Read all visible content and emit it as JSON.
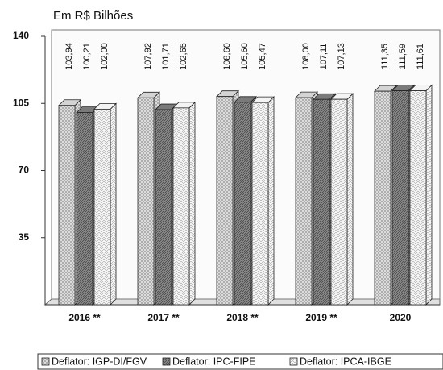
{
  "chart_data": {
    "type": "bar3d",
    "y_axis_label": "Em R$ Bilhões",
    "categories": [
      "2016 **",
      "2017 **",
      "2018 **",
      "2019 **",
      "2020"
    ],
    "series": [
      {
        "name": "Deflator: IGP-DI/FGV",
        "color": "#d4d4d4",
        "values": [
          103.94,
          107.92,
          108.6,
          108.0,
          111.35
        ],
        "value_labels": [
          "103,94",
          "107,92",
          "108,60",
          "108,00",
          "111,35"
        ]
      },
      {
        "name": "Deflator: IPC-FIPE",
        "color": "#7a7a7a",
        "values": [
          100.21,
          101.71,
          105.6,
          107.11,
          111.59
        ],
        "value_labels": [
          "100,21",
          "101,71",
          "105,60",
          "107,11",
          "111,59"
        ]
      },
      {
        "name": "Deflator: IPCA-IBGE",
        "color": "#f4f4f4",
        "values": [
          102.0,
          102.65,
          105.47,
          107.13,
          111.61
        ],
        "value_labels": [
          "102,00",
          "102,65",
          "105,47",
          "107,13",
          "111,61"
        ]
      }
    ],
    "ylim": [
      0,
      140
    ],
    "yticks": [
      35,
      70,
      105,
      140
    ],
    "legend": "bottom"
  }
}
